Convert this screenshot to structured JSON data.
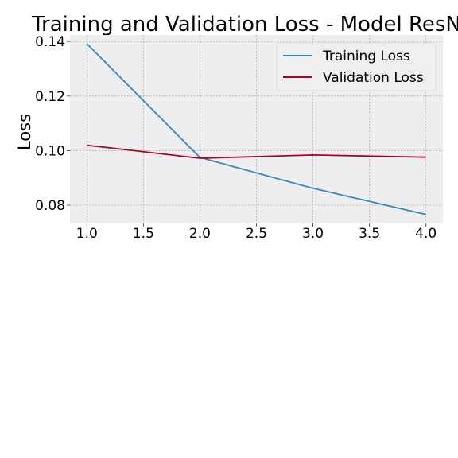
{
  "chart_data": {
    "type": "line",
    "title": "Training and Validation Loss - Model ResNet",
    "xlabel": "",
    "ylabel": "Loss",
    "x": [
      1.0,
      2.0,
      3.0,
      4.0
    ],
    "series": [
      {
        "name": "Training Loss",
        "color": "#348abd",
        "values": [
          0.1392,
          0.0975,
          0.0862,
          0.0766
        ]
      },
      {
        "name": "Validation Loss",
        "color": "#a60628",
        "values": [
          0.102,
          0.0972,
          0.0984,
          0.0976
        ]
      }
    ],
    "xlim": [
      0.85,
      4.15
    ],
    "ylim": [
      0.0733,
      0.1424
    ],
    "xticks": [
      1.0,
      1.5,
      2.0,
      2.5,
      3.0,
      3.5,
      4.0
    ],
    "xtick_labels": [
      "1.0",
      "1.5",
      "2.0",
      "2.5",
      "3.0",
      "3.5",
      "4.0"
    ],
    "yticks": [
      0.08,
      0.1,
      0.12,
      0.14
    ],
    "ytick_labels": [
      "0.08",
      "0.10",
      "0.12",
      "0.14"
    ],
    "grid": true,
    "legend_position": "top-right",
    "background_color": "#eeeeee"
  }
}
